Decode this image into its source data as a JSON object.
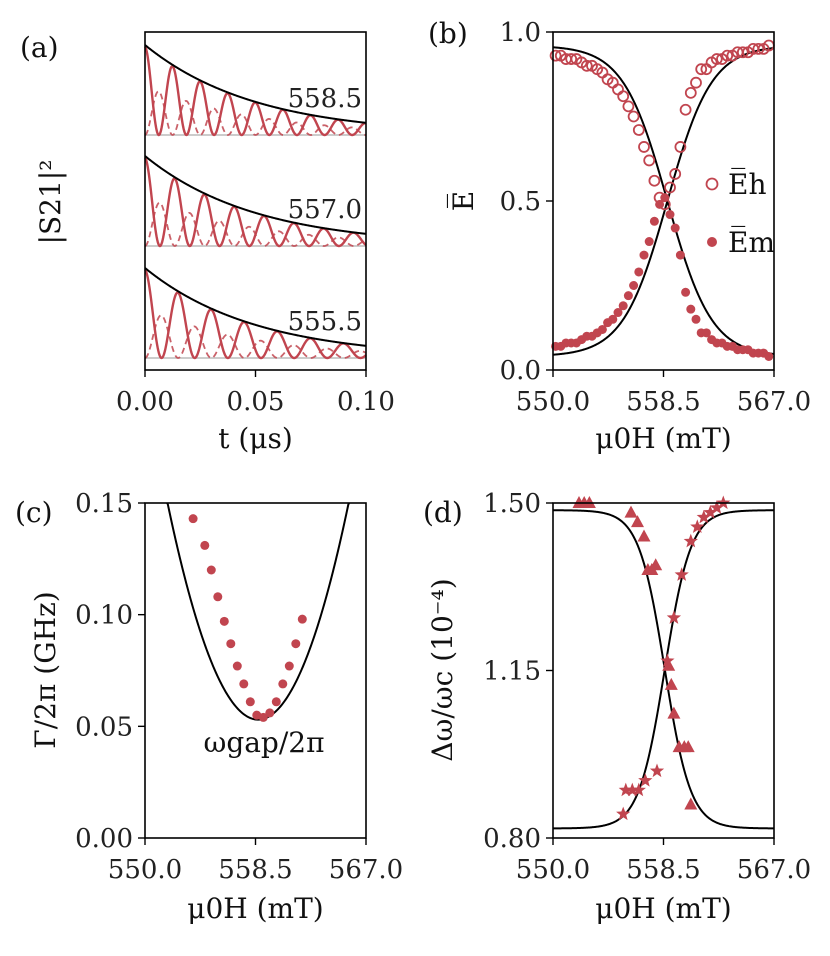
{
  "colors": {
    "data": "#c1454f",
    "fit": "#000000",
    "baseline": "#bbbbbb"
  },
  "chart_data": [
    {
      "panel": "(a)",
      "type": "line",
      "xlabel": "t (μs)",
      "ylabel": "|S21|²",
      "xlim": [
        0,
        0.1
      ],
      "xticks": [
        "0.00",
        "0.05",
        "0.10"
      ],
      "traces": [
        {
          "label": "558.5",
          "envelope_tau_us": 0.05,
          "period_us": 0.0125
        },
        {
          "label": "557.0",
          "envelope_tau_us": 0.05,
          "period_us": 0.0135
        },
        {
          "label": "555.5",
          "envelope_tau_us": 0.05,
          "period_us": 0.015
        }
      ]
    },
    {
      "panel": "(b)",
      "type": "scatter",
      "xlabel": "μ0H (mT)",
      "ylabel": "E̅",
      "xlim": [
        550,
        567
      ],
      "ylim": [
        0,
        1
      ],
      "xticks": [
        "550.0",
        "558.5",
        "567.0"
      ],
      "yticks": [
        "0.0",
        "0.5",
        "1.0"
      ],
      "legend": [
        "E̅h",
        "E̅m"
      ],
      "x": [
        550.2,
        550.6,
        551.0,
        551.4,
        551.8,
        552.2,
        552.6,
        553.0,
        553.4,
        553.8,
        554.2,
        554.6,
        555.0,
        555.4,
        555.8,
        556.2,
        556.6,
        557.0,
        557.4,
        557.8,
        558.2,
        558.6,
        559.0,
        559.4,
        559.8,
        560.2,
        560.6,
        561.0,
        561.4,
        561.8,
        562.2,
        562.6,
        563.0,
        563.4,
        563.8,
        564.2,
        564.6,
        565.0,
        565.4,
        565.8,
        566.2,
        566.6
      ],
      "series": [
        {
          "name": "E̅h",
          "values": [
            0.93,
            0.93,
            0.92,
            0.92,
            0.92,
            0.91,
            0.9,
            0.9,
            0.89,
            0.88,
            0.86,
            0.85,
            0.83,
            0.81,
            0.78,
            0.75,
            0.71,
            0.66,
            0.62,
            0.56,
            0.51,
            0.49,
            0.54,
            0.58,
            0.66,
            0.77,
            0.82,
            0.85,
            0.89,
            0.89,
            0.91,
            0.92,
            0.92,
            0.93,
            0.93,
            0.94,
            0.94,
            0.94,
            0.95,
            0.95,
            0.95,
            0.96
          ]
        },
        {
          "name": "E̅m",
          "values": [
            0.07,
            0.07,
            0.08,
            0.08,
            0.08,
            0.09,
            0.1,
            0.1,
            0.11,
            0.12,
            0.14,
            0.15,
            0.17,
            0.19,
            0.22,
            0.25,
            0.29,
            0.34,
            0.38,
            0.44,
            0.49,
            0.51,
            0.46,
            0.42,
            0.34,
            0.23,
            0.18,
            0.15,
            0.11,
            0.11,
            0.09,
            0.08,
            0.08,
            0.07,
            0.07,
            0.06,
            0.06,
            0.06,
            0.05,
            0.05,
            0.05,
            0.04
          ]
        }
      ],
      "fit": {
        "center": 558.8,
        "width": 1.7,
        "low": 0.04,
        "high": 0.96
      }
    },
    {
      "panel": "(c)",
      "type": "scatter",
      "xlabel": "μ0H (mT)",
      "ylabel": "Γ/2π (GHz)",
      "xlim": [
        550,
        567
      ],
      "ylim": [
        0,
        0.15
      ],
      "xticks": [
        "550.0",
        "558.5",
        "567.0"
      ],
      "yticks": [
        "0.00",
        "0.05",
        "0.10",
        "0.15"
      ],
      "annotation": "ωgap/2π",
      "x": [
        553.7,
        554.6,
        555.1,
        555.6,
        556.1,
        556.6,
        557.1,
        557.6,
        558.1,
        558.6,
        559.1,
        559.6,
        560.1,
        560.6,
        561.1,
        561.6,
        562.1
      ],
      "values": [
        0.143,
        0.131,
        0.12,
        0.108,
        0.097,
        0.087,
        0.077,
        0.069,
        0.061,
        0.055,
        0.054,
        0.056,
        0.061,
        0.069,
        0.077,
        0.087,
        0.098
      ],
      "fit": {
        "center": 558.7,
        "min": 0.053,
        "curvature": 0.002
      }
    },
    {
      "panel": "(d)",
      "type": "scatter",
      "xlabel": "μ0H (mT)",
      "ylabel": "Δω/ωc (10⁻⁴)",
      "xlim": [
        550,
        567
      ],
      "ylim": [
        0.8,
        1.5
      ],
      "xticks": [
        "550.0",
        "558.5",
        "567.0"
      ],
      "yticks": [
        "0.80",
        "1.15",
        "1.50"
      ],
      "series": [
        {
          "name": "triangles",
          "x": [
            552.0,
            552.4,
            552.8,
            556.0,
            556.5,
            557.0,
            557.3,
            557.6,
            557.9,
            558.9,
            559.1,
            559.3,
            559.7,
            560.1,
            560.4,
            560.6
          ],
          "values": [
            1.5,
            1.5,
            1.5,
            1.48,
            1.46,
            1.43,
            1.36,
            1.36,
            1.37,
            1.16,
            1.12,
            1.06,
            0.99,
            0.99,
            0.99,
            0.87
          ]
        },
        {
          "name": "stars",
          "x": [
            555.4,
            555.6,
            556.1,
            556.6,
            557.1,
            558.0,
            558.8,
            559.3,
            559.9,
            560.6,
            561.1,
            561.6,
            562.1,
            562.6,
            563.1
          ],
          "values": [
            0.85,
            0.9,
            0.9,
            0.9,
            0.92,
            0.94,
            1.17,
            1.26,
            1.35,
            1.42,
            1.45,
            1.47,
            1.48,
            1.49,
            1.5
          ]
        }
      ],
      "fit": {
        "center": 558.6,
        "width": 1.0,
        "low": 0.82,
        "high": 1.485
      }
    }
  ]
}
